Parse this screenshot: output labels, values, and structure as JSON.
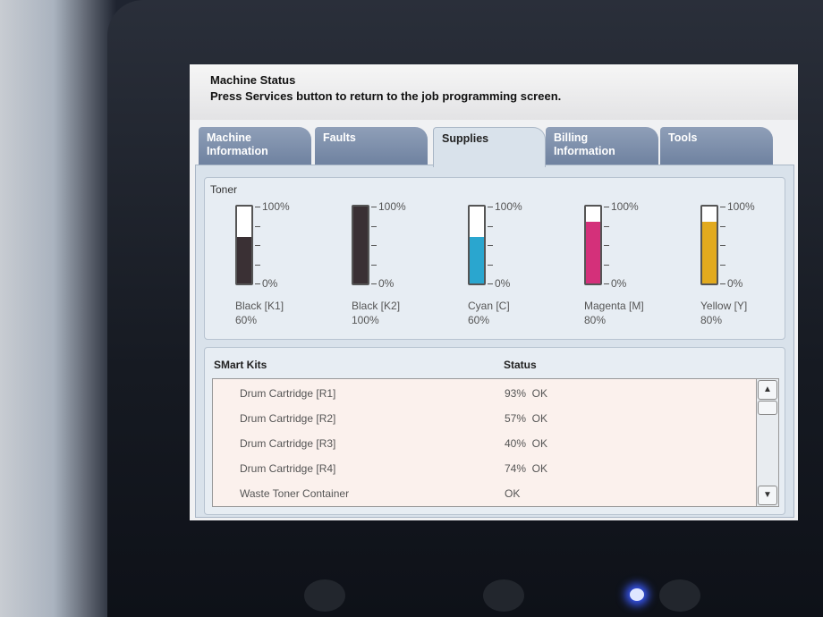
{
  "header": {
    "title": "Machine Status",
    "subtitle": "Press Services button to return to the job programming screen."
  },
  "tabs": [
    {
      "label": "Machine Information",
      "active": false
    },
    {
      "label": "Faults",
      "active": false
    },
    {
      "label": "Supplies",
      "active": true
    },
    {
      "label": "Billing Information",
      "active": false
    },
    {
      "label": "Tools",
      "active": false
    }
  ],
  "toner": {
    "title": "Toner",
    "scale": [
      {
        "value": 100,
        "label": "100%"
      },
      {
        "value": 0,
        "label": "0%"
      }
    ],
    "gauges": [
      {
        "name": "Black [K1]",
        "level": 60,
        "level_label": "60%",
        "color": "#3a3034"
      },
      {
        "name": "Black [K2]",
        "level": 100,
        "level_label": "100%",
        "color": "#3a3034"
      },
      {
        "name": "Cyan [C]",
        "level": 60,
        "level_label": "60%",
        "color": "#2aa6cf"
      },
      {
        "name": "Magenta [M]",
        "level": 80,
        "level_label": "80%",
        "color": "#d4307a"
      },
      {
        "name": "Yellow [Y]",
        "level": 80,
        "level_label": "80%",
        "color": "#e2aa1e"
      }
    ]
  },
  "smart_kits": {
    "headers": [
      "SMart Kits",
      "Status"
    ],
    "rows": [
      [
        "Drum Cartridge [R1]",
        "93%  OK"
      ],
      [
        "Drum Cartridge [R2]",
        "57%  OK"
      ],
      [
        "Drum Cartridge [R3]",
        "40%  OK"
      ],
      [
        "Drum Cartridge [R4]",
        "74%  OK"
      ],
      [
        "Waste Toner Container",
        "OK"
      ]
    ]
  }
}
